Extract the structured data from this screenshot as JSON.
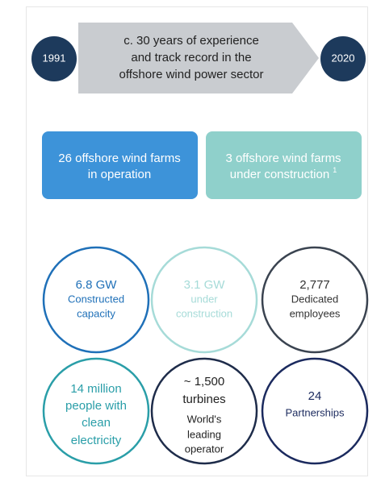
{
  "timeline": {
    "start": "1991",
    "end": "2020",
    "text": [
      "c. 30 years of experience",
      "and track record in the",
      "offshore wind power sector"
    ]
  },
  "highlights": [
    {
      "lines": [
        "26 offshore wind farms",
        "in operation"
      ]
    },
    {
      "lines": [
        "3 offshore wind farms",
        "under construction"
      ],
      "footnote": "1"
    }
  ],
  "stats": [
    {
      "lines": [
        "6.8 GW",
        "Constructed",
        "capacity"
      ]
    },
    {
      "lines": [
        "3.1 GW",
        "under",
        "construction"
      ]
    },
    {
      "lines": [
        "2,777",
        "Dedicated",
        "employees"
      ]
    },
    {
      "lines": [
        "14 million",
        "people with",
        "clean",
        "electricity"
      ]
    },
    {
      "lines": [
        "~ 1,500",
        "turbines",
        "World's",
        "leading",
        "operator"
      ]
    },
    {
      "lines": [
        "24",
        "Partnerships"
      ]
    }
  ]
}
